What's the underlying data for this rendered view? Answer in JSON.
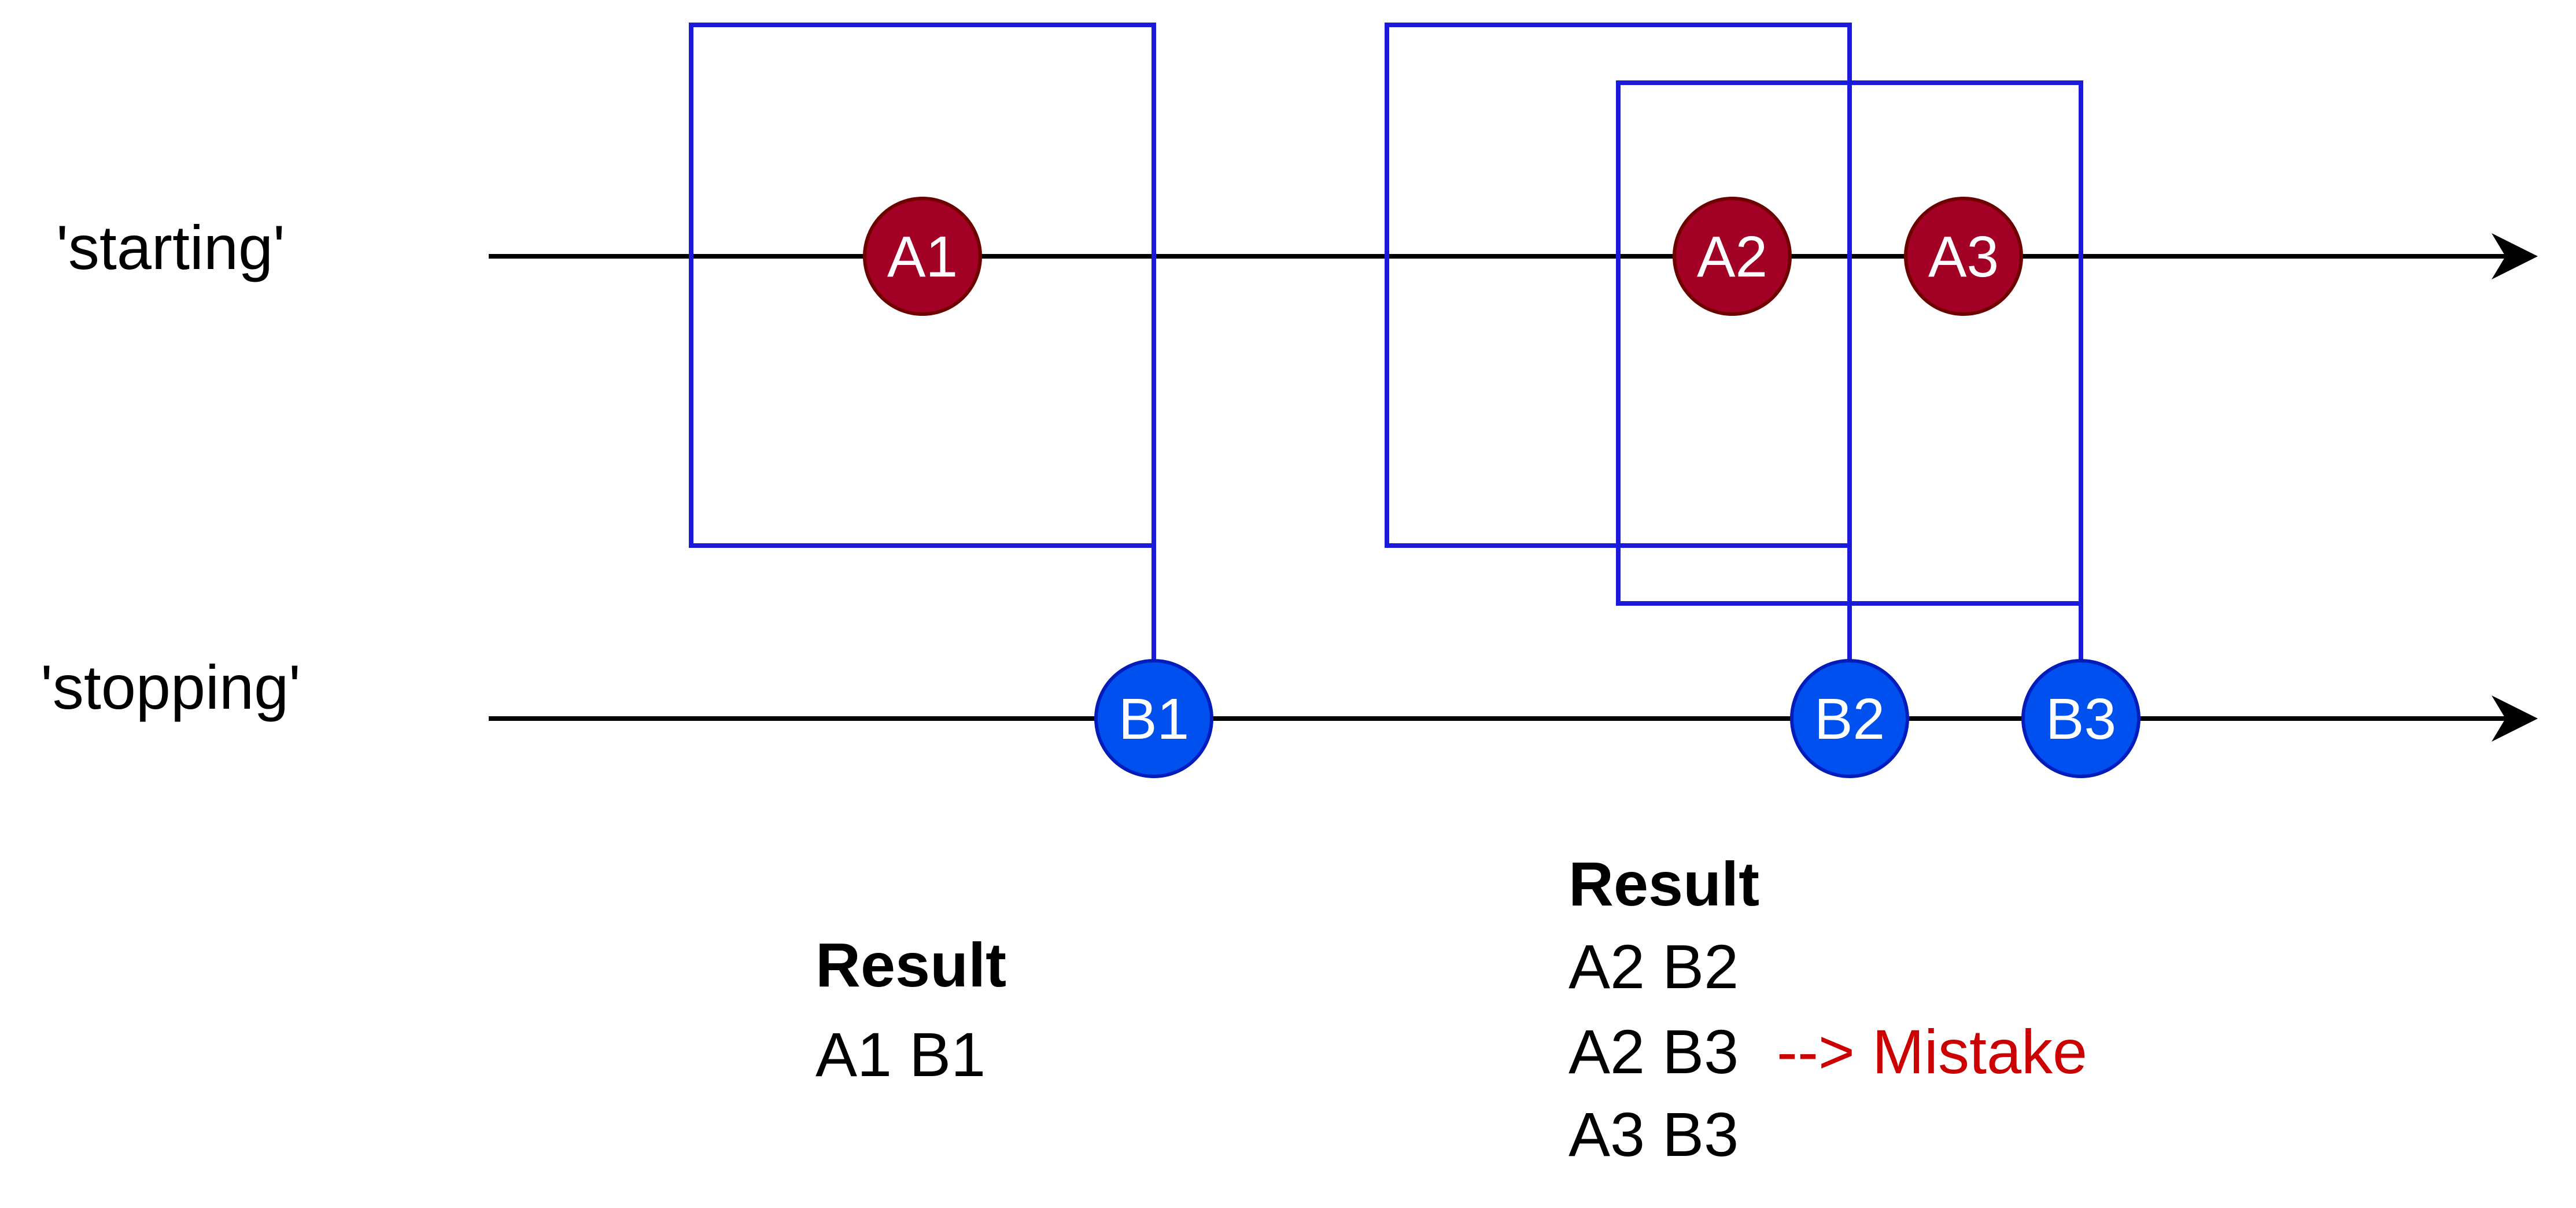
{
  "streams": {
    "starting": {
      "label": "'starting'"
    },
    "stopping": {
      "label": "'stopping'"
    }
  },
  "nodes": {
    "A1": "A1",
    "A2": "A2",
    "A3": "A3",
    "B1": "B1",
    "B2": "B2",
    "B3": "B3"
  },
  "results": {
    "left": {
      "heading": "Result",
      "lines": [
        "A1 B1"
      ]
    },
    "right": {
      "heading": "Result",
      "lines": [
        "A2 B2",
        "A2 B3",
        "A3 B3"
      ],
      "mistake_note": "--> Mistake"
    }
  },
  "colors": {
    "starting_node": "#A20025",
    "stopping_node": "#0050EF",
    "window": "#1A1ADB",
    "mistake": "#CC0000",
    "line": "#000000"
  }
}
